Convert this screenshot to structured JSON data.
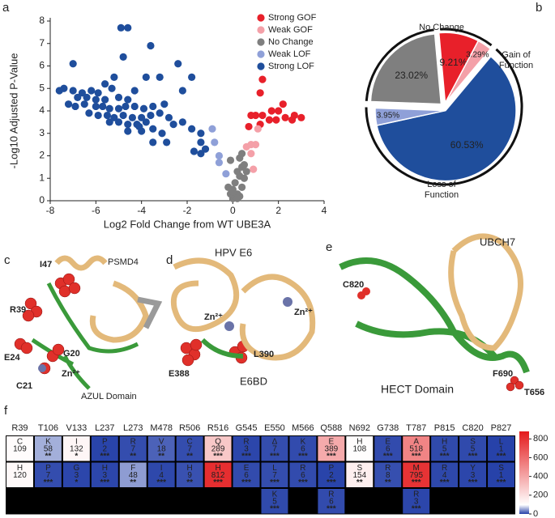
{
  "panel_labels": [
    "a",
    "b",
    "c",
    "d",
    "e",
    "f"
  ],
  "chart_data": [
    {
      "type": "scatter",
      "xlabel": "Log2 Fold Change from WT UBE3A",
      "ylabel": "-Log10 Adjusted P-Value",
      "xlim": [
        -8,
        4
      ],
      "xticks": [
        -8,
        -6,
        -4,
        -2,
        0,
        2,
        4
      ],
      "ylim": [
        0,
        8
      ],
      "yticks": [
        0,
        1,
        2,
        3,
        4,
        5,
        6,
        7,
        8
      ],
      "legend": "upper right",
      "series": [
        {
          "name": "Strong GOF",
          "color": "#e8202a",
          "x": [
            1.3,
            1.2,
            2.2,
            0.8,
            1.0,
            1.3,
            1.6,
            1.9,
            2.0,
            2.3,
            2.6,
            3.0,
            2.7,
            1.7,
            0.7,
            1.2
          ],
          "values": [
            5.4,
            4.8,
            4.3,
            3.8,
            3.8,
            3.8,
            3.6,
            3.6,
            4.0,
            3.7,
            3.6,
            3.7,
            3.8,
            4.0,
            3.3,
            3.4
          ]
        },
        {
          "name": "Weak GOF",
          "color": "#f4a0a8",
          "x": [
            0.6,
            0.8,
            0.8,
            1.0,
            0.9,
            1.1
          ],
          "values": [
            2.4,
            2.5,
            2.1,
            2.5,
            1.4,
            3.2
          ]
        },
        {
          "name": "No Change",
          "color": "#7f7f7f",
          "x": [
            0.0,
            0.1,
            0.2,
            -0.1,
            0.3,
            0.0,
            -0.2,
            0.4,
            0.1,
            0.5,
            0.3,
            0.2,
            0.4,
            0.5,
            0.3,
            -0.1,
            0.4,
            0.6,
            0.0,
            0.2
          ],
          "values": [
            0.1,
            0.2,
            0.3,
            0.3,
            0.2,
            0.5,
            0.6,
            0.6,
            0.8,
            1.0,
            1.1,
            1.3,
            1.5,
            1.6,
            1.9,
            1.8,
            2.1,
            1.3,
            0.4,
            0.1
          ]
        },
        {
          "name": "Weak LOF",
          "color": "#8fa0d8",
          "x": [
            -0.9,
            -0.8,
            -0.6,
            -0.3,
            -0.6
          ],
          "values": [
            3.2,
            2.6,
            2.0,
            1.2,
            1.7
          ]
        },
        {
          "name": "Strong LOF",
          "color": "#1f4e9c",
          "x": [
            -4.9,
            -4.6,
            -3.6,
            -7.0,
            -2.4,
            -4.8,
            -5.2,
            -3.8,
            -3.2,
            -1.8,
            -5.6,
            -5.3,
            -7.6,
            -7.4,
            -7.0,
            -6.6,
            -6.2,
            -5.9,
            -4.3,
            -2.2,
            -6.8,
            -6.4,
            -6.0,
            -5.6,
            -5.0,
            -4.6,
            -7.2,
            -6.9,
            -6.5,
            -6.0,
            -5.7,
            -5.4,
            -5.0,
            -4.7,
            -4.3,
            -3.9,
            -3.5,
            -3.0,
            -6.3,
            -5.9,
            -5.5,
            -5.2,
            -4.8,
            -4.4,
            -4.0,
            -3.6,
            -3.2,
            -2.8,
            -5.4,
            -5.0,
            -4.6,
            -4.2,
            -3.8,
            -2.6,
            -2.2,
            -4.6,
            -4.0,
            -3.5,
            -3.1,
            -1.4,
            -1.8,
            -2.9,
            -3.5,
            -1.4,
            -1.2,
            -1.7,
            -1.4,
            -4.1
          ],
          "values": [
            7.7,
            7.7,
            6.9,
            6.1,
            6.1,
            6.4,
            5.5,
            5.5,
            5.5,
            5.5,
            5.2,
            5.0,
            4.9,
            5.0,
            4.9,
            4.8,
            4.9,
            4.8,
            4.9,
            4.9,
            4.6,
            4.6,
            4.5,
            4.5,
            4.6,
            4.5,
            4.3,
            4.2,
            4.3,
            4.2,
            4.2,
            4.1,
            4.1,
            4.2,
            4.2,
            4.1,
            4.2,
            4.3,
            3.9,
            3.8,
            3.8,
            3.7,
            3.8,
            3.7,
            3.7,
            3.8,
            3.9,
            3.7,
            3.5,
            3.5,
            3.4,
            3.4,
            3.5,
            3.4,
            3.5,
            3.1,
            3.1,
            3.2,
            3.0,
            3.0,
            3.2,
            2.6,
            2.6,
            2.6,
            2.3,
            2.2,
            2.1,
            3.3
          ]
        }
      ]
    },
    {
      "type": "pie",
      "groups": [
        {
          "label": "No Change",
          "values": [
            23.02
          ],
          "value_labels": [
            "23.02%"
          ],
          "colors": [
            "#7f7f7f"
          ]
        },
        {
          "label": "Gain of Function",
          "values": [
            9.21,
            3.29
          ],
          "value_labels": [
            "9.21%",
            "3.29%"
          ],
          "colors": [
            "#e8202a",
            "#f4a0a8"
          ]
        },
        {
          "label": "Loss of Function",
          "values": [
            60.53,
            3.95
          ],
          "value_labels": [
            "60.53%",
            "3.95%"
          ],
          "colors": [
            "#1f4e9c",
            "#8fa0d8"
          ]
        }
      ]
    },
    {
      "type": "heatmap",
      "columns": [
        "R39",
        "T106",
        "V133",
        "L237",
        "L273",
        "M478",
        "R506",
        "R516",
        "G545",
        "E550",
        "M566",
        "Q588",
        "N692",
        "G738",
        "T787",
        "P815",
        "C820",
        "P827"
      ],
      "rows": [
        [
          {
            "aa": "C",
            "value": 109
          },
          {
            "aa": "K",
            "value": 58,
            "stars": "**"
          },
          {
            "aa": "I",
            "value": 132,
            "stars": "*"
          },
          {
            "aa": "P",
            "value": 2,
            "stars": "***"
          },
          {
            "aa": "R",
            "value": 7,
            "stars": "**"
          },
          {
            "aa": "V",
            "value": 18,
            "stars": "**"
          },
          {
            "aa": "C",
            "value": 7,
            "stars": "**"
          },
          {
            "aa": "Q",
            "value": 289,
            "stars": "***"
          },
          {
            "aa": "R",
            "value": 3,
            "stars": "***"
          },
          {
            "aa": "Δ",
            "value": 7,
            "stars": "***"
          },
          {
            "aa": "K",
            "value": 6,
            "stars": "***"
          },
          {
            "aa": "E",
            "value": 389,
            "stars": "***"
          },
          {
            "aa": "H",
            "value": 108
          },
          {
            "aa": "E",
            "value": 6,
            "stars": "***"
          },
          {
            "aa": "A",
            "value": 518,
            "stars": "***"
          },
          {
            "aa": "H",
            "value": 5,
            "stars": "***"
          },
          {
            "aa": "S",
            "value": 5,
            "stars": "***"
          },
          {
            "aa": "L",
            "value": 1,
            "stars": "***"
          }
        ],
        [
          {
            "aa": "H",
            "value": 120
          },
          {
            "aa": "P",
            "value": 7,
            "stars": "***"
          },
          {
            "aa": "G",
            "value": 3,
            "stars": "*"
          },
          {
            "aa": "H",
            "value": 3,
            "stars": "***"
          },
          {
            "aa": "F",
            "value": 48,
            "stars": "**"
          },
          {
            "aa": "I",
            "value": 4,
            "stars": "***"
          },
          {
            "aa": "H",
            "value": 9,
            "stars": "**"
          },
          {
            "aa": "H",
            "value": 812,
            "stars": "***"
          },
          {
            "aa": "E",
            "value": 6,
            "stars": "***"
          },
          {
            "aa": "L",
            "value": 7,
            "stars": "***"
          },
          {
            "aa": "R",
            "value": 6,
            "stars": "***"
          },
          {
            "aa": "P",
            "value": 2,
            "stars": "***"
          },
          {
            "aa": "S",
            "value": 154,
            "stars": "**"
          },
          {
            "aa": "R",
            "value": 8,
            "stars": "**"
          },
          {
            "aa": "M",
            "value": 795,
            "stars": "***"
          },
          {
            "aa": "R",
            "value": 4,
            "stars": "***"
          },
          {
            "aa": "Y",
            "value": 3,
            "stars": "***"
          },
          {
            "aa": "S",
            "value": 1,
            "stars": "***"
          }
        ],
        [
          null,
          null,
          null,
          null,
          null,
          null,
          null,
          null,
          null,
          {
            "aa": "K",
            "value": 5,
            "stars": "***"
          },
          null,
          {
            "aa": "R",
            "value": 6,
            "stars": "***"
          },
          null,
          null,
          {
            "aa": "R",
            "value": 3,
            "stars": "***"
          },
          null,
          null,
          null
        ]
      ],
      "zlim": [
        0,
        880
      ],
      "zticks": [
        0,
        200,
        400,
        600,
        800
      ],
      "colormap": {
        "low": "#2540a8",
        "mid": "#ffffff",
        "high": "#e41a1c",
        "mid_value": 100
      }
    }
  ],
  "structures": {
    "c": [
      "PSMD4",
      "I47",
      "R39",
      "G20",
      "E24",
      "Zn²⁺",
      "C21",
      "AZUL Domain"
    ],
    "d": [
      "HPV E6",
      "Zn²⁺",
      "Zn²⁺",
      "L390",
      "E388",
      "E6BD"
    ],
    "e": [
      "UBCH7",
      "C820",
      "F690",
      "T656",
      "HECT Domain"
    ]
  }
}
